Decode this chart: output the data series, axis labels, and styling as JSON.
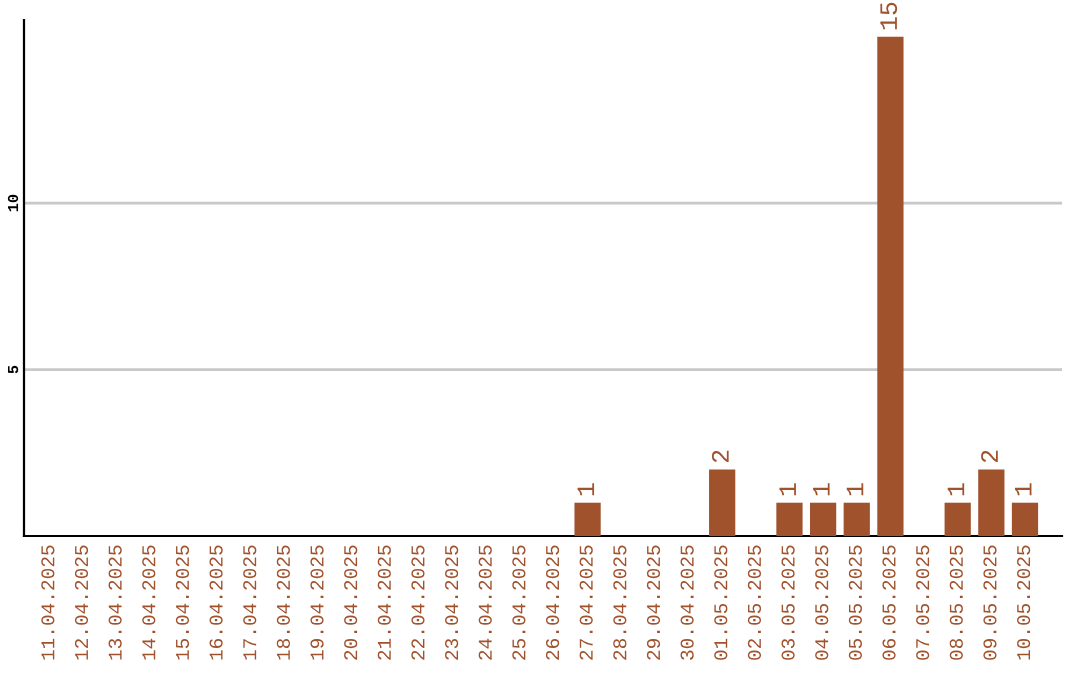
{
  "chart_data": {
    "type": "bar",
    "categories": [
      "11.04.2025",
      "12.04.2025",
      "13.04.2025",
      "14.04.2025",
      "15.04.2025",
      "16.04.2025",
      "17.04.2025",
      "18.04.2025",
      "19.04.2025",
      "20.04.2025",
      "21.04.2025",
      "22.04.2025",
      "23.04.2025",
      "24.04.2025",
      "25.04.2025",
      "26.04.2025",
      "27.04.2025",
      "28.04.2025",
      "29.04.2025",
      "30.04.2025",
      "01.05.2025",
      "02.05.2025",
      "03.05.2025",
      "04.05.2025",
      "05.05.2025",
      "06.05.2025",
      "07.05.2025",
      "08.05.2025",
      "09.05.2025",
      "10.05.2025"
    ],
    "values": [
      0,
      0,
      0,
      0,
      0,
      0,
      0,
      0,
      0,
      0,
      0,
      0,
      0,
      0,
      0,
      0,
      1,
      0,
      0,
      0,
      2,
      0,
      1,
      1,
      1,
      15,
      0,
      1,
      2,
      1
    ],
    "value_labels": [
      null,
      null,
      null,
      null,
      null,
      null,
      null,
      null,
      null,
      null,
      null,
      null,
      null,
      null,
      null,
      null,
      "1",
      null,
      null,
      null,
      "2",
      null,
      "1",
      "1",
      "1",
      "15",
      null,
      "1",
      "2",
      "1"
    ],
    "color": "#a0522d",
    "ylim": [
      0,
      15.5
    ],
    "yticks": [
      5,
      10
    ],
    "grid": "y",
    "legend": false
  }
}
